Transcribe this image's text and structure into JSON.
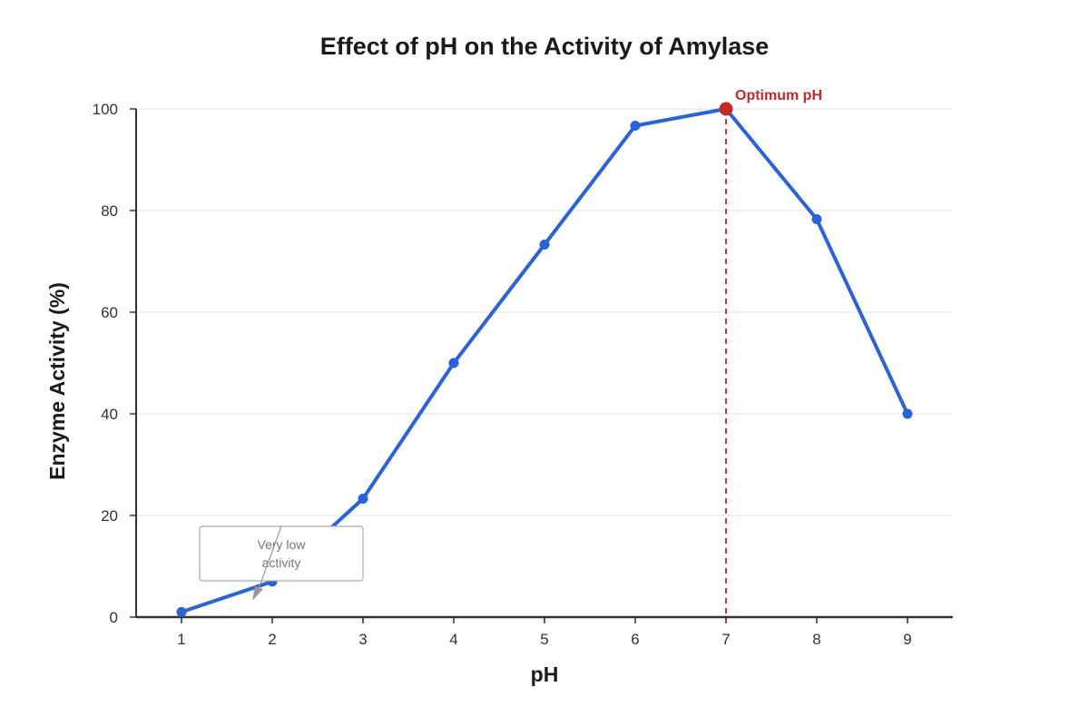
{
  "chart_data": {
    "type": "line",
    "title": "Effect of pH on the Activity of Amylase",
    "xlabel": "pH",
    "ylabel": "Enzyme Activity (%)",
    "x": [
      1,
      2,
      3,
      4,
      5,
      6,
      7,
      8,
      9
    ],
    "y": [
      1,
      7,
      23.3,
      50,
      73.3,
      96.7,
      100,
      78.3,
      40
    ],
    "xlim": [
      0.5,
      9.5
    ],
    "ylim": [
      0,
      100
    ],
    "yticks": [
      0,
      20,
      40,
      60,
      80,
      100
    ],
    "xticks": [
      1,
      2,
      3,
      4,
      5,
      6,
      7,
      8,
      9
    ],
    "grid": "horizontal",
    "line_color": "#2a62d8",
    "annotations": {
      "low": {
        "text_line1": "Very low",
        "text_line2": "activity",
        "x": 1.8,
        "y": 3.5
      },
      "optimum": {
        "text": "Optimum pH",
        "x": 7,
        "y": 100,
        "color": "#c62828"
      }
    }
  }
}
